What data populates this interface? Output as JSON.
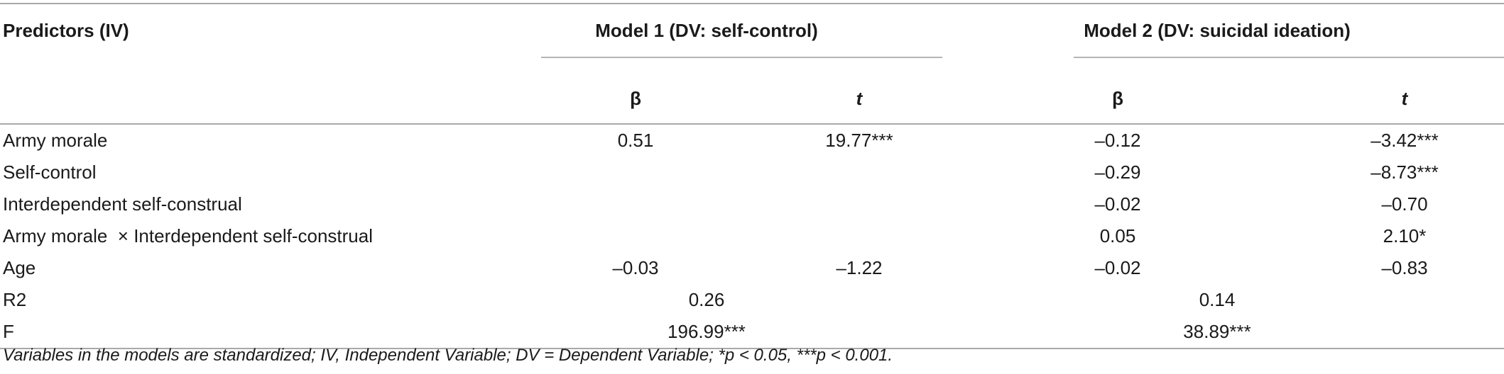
{
  "table": {
    "header": {
      "predictors": "Predictors (IV)",
      "model1": "Model 1 (DV: self-control)",
      "model2": "Model 2 (DV: suicidal ideation)",
      "beta": "β",
      "t": "t"
    },
    "rows": [
      {
        "label": "Army morale",
        "m1_beta": "0.51",
        "m1_t": "19.77***",
        "m2_beta": "–0.12",
        "m2_t": "–3.42***"
      },
      {
        "label": "Self-control",
        "m1_beta": "",
        "m1_t": "",
        "m2_beta": "–0.29",
        "m2_t": "–8.73***"
      },
      {
        "label": "Interdependent self-construal",
        "m1_beta": "",
        "m1_t": "",
        "m2_beta": "–0.02",
        "m2_t": "–0.70"
      },
      {
        "label": "Army morale  × Interdependent self-construal",
        "m1_beta": "",
        "m1_t": "",
        "m2_beta": "0.05",
        "m2_t": "2.10*"
      },
      {
        "label": "Age",
        "m1_beta": "–0.03",
        "m1_t": "–1.22",
        "m2_beta": "–0.02",
        "m2_t": "–0.83"
      }
    ],
    "r2": {
      "label": "R2",
      "m1": "0.26",
      "m2": "0.14"
    },
    "f": {
      "label": "F",
      "m1": "196.99***",
      "m2": "38.89***"
    }
  },
  "footnote": "Variables in the models are standardized; IV, Independent Variable; DV = Dependent Variable; *p < 0.05, ***p < 0.001."
}
